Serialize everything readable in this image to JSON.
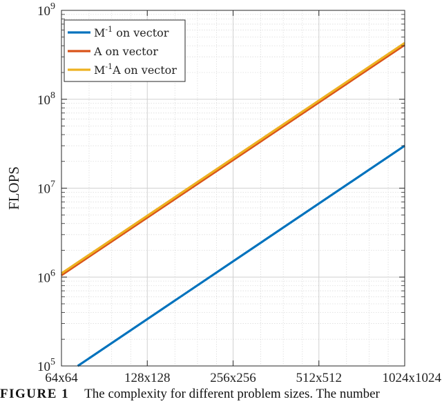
{
  "chart_data": {
    "type": "line",
    "ylabel": "FLOPS",
    "yscale": "log",
    "ylim": [
      100000,
      1000000000
    ],
    "yticks": [
      {
        "value": 100000,
        "base": "10",
        "exp": "5"
      },
      {
        "value": 1000000,
        "base": "10",
        "exp": "6"
      },
      {
        "value": 10000000,
        "base": "10",
        "exp": "7"
      },
      {
        "value": 100000000,
        "base": "10",
        "exp": "8"
      },
      {
        "value": 1000000000,
        "base": "10",
        "exp": "9"
      }
    ],
    "xscale": "log2",
    "xlim": [
      64,
      1024
    ],
    "categories": [
      "64x64",
      "128x128",
      "256x256",
      "512x512",
      "1024x1024"
    ],
    "x": [
      64,
      128,
      256,
      512,
      1024
    ],
    "grid": true,
    "legend_position": "top-left",
    "series": [
      {
        "name": "M⁻¹ on vector",
        "legend_main": "M",
        "legend_sup": "-1",
        "legend_rest": " on vector",
        "color": "#0072BD",
        "points": [
          [
            73,
            100000
          ],
          [
            1024,
            30000000
          ]
        ]
      },
      {
        "name": "A on vector",
        "legend_main": "A on vector",
        "legend_sup": "",
        "legend_rest": "",
        "color": "#D95319",
        "points": [
          [
            64,
            1050000
          ],
          [
            1024,
            410000000
          ]
        ]
      },
      {
        "name": "M⁻¹A on vector",
        "legend_main": "M",
        "legend_sup": "-1",
        "legend_rest": "A on vector",
        "color": "#EDB120",
        "points": [
          [
            64,
            1100000
          ],
          [
            1024,
            430000000
          ]
        ]
      }
    ]
  },
  "caption": {
    "label": "FIGURE 1",
    "text": "The complexity for different problem sizes. The number"
  }
}
